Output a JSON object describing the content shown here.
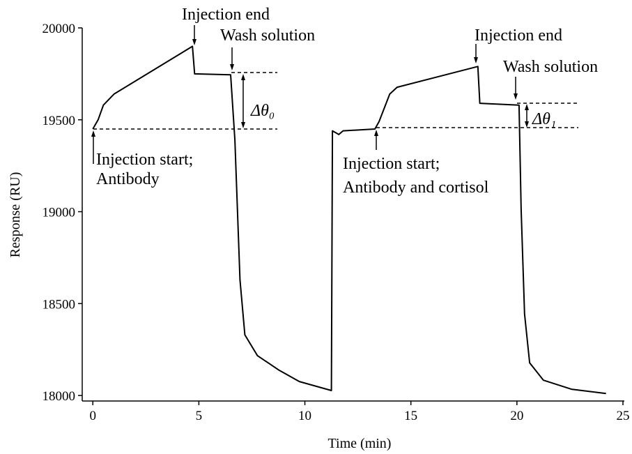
{
  "chart_data": {
    "type": "line",
    "x_label": "Time (min)",
    "y_label": "Response (RU)",
    "xlim": [
      -0.5,
      25
    ],
    "ylim": [
      17970,
      20000
    ],
    "xticks": [
      0,
      5,
      10,
      15,
      20,
      25
    ],
    "yticks": [
      18000,
      18500,
      19000,
      19500,
      20000
    ],
    "color": "#000000",
    "series": [
      {
        "name": "Response",
        "x": [
          0,
          0.25,
          0.5,
          1,
          4.7,
          4.8,
          6.5,
          6.7,
          6.94,
          7.17,
          7.76,
          8.75,
          9.74,
          11.25,
          11.3,
          11.45,
          11.6,
          11.8,
          13.3,
          13.5,
          14.0,
          14.35,
          18.16,
          18.25,
          20.1,
          20.2,
          20.36,
          20.6,
          21.25,
          22.57,
          24.2
        ],
        "values": [
          19450,
          19500,
          19580,
          19640,
          19900,
          19750,
          19745,
          19390,
          18630,
          18330,
          18217,
          18140,
          18076,
          18027,
          19440,
          19430,
          19420,
          19440,
          19450,
          19490,
          19640,
          19677,
          19790,
          19590,
          19580,
          19013,
          18444,
          18178,
          18083,
          18034,
          18011
        ]
      }
    ],
    "annotations": [
      "Injection end",
      "Wash solution",
      "Injection start;",
      "Antibody",
      "Δθ₀",
      "Injection end",
      "Wash solution",
      "Injection start;",
      "Antibody and cortisol",
      "Δθ₁"
    ]
  }
}
